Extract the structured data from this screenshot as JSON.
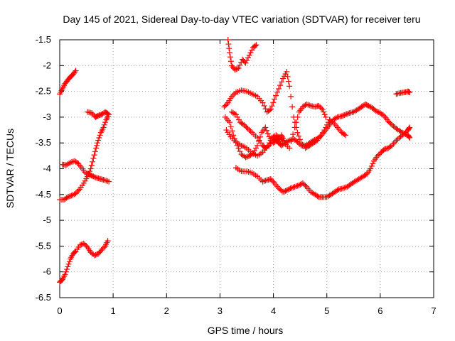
{
  "chart_data": {
    "type": "scatter",
    "title": "Day 145 of 2021, Sidereal Day-to-day VTEC variation (SDTVAR) for receiver teru",
    "xlabel": "GPS time / hours",
    "ylabel": "SDTVAR / TECUs",
    "xlim": [
      0,
      7
    ],
    "ylim": [
      -6.5,
      -1.5
    ],
    "xticks": [
      "0",
      "1",
      "2",
      "3",
      "4",
      "5",
      "6",
      "7"
    ],
    "yticks": [
      "-1.5",
      "-2",
      "-2.5",
      "-3",
      "-3.5",
      "-4",
      "-4.5",
      "-5",
      "-5.5",
      "-6",
      "-6.5"
    ],
    "grid": true,
    "marker": "+",
    "color": "#ff0000",
    "series": [
      {
        "x": [
          0.0,
          0.05,
          0.1,
          0.15,
          0.2,
          0.25,
          0.3
        ],
        "y": [
          -2.55,
          -2.45,
          -2.35,
          -2.28,
          -2.22,
          -2.17,
          -2.1
        ]
      },
      {
        "x": [
          0.52,
          0.6,
          0.67,
          0.72,
          0.78,
          0.85,
          0.9
        ],
        "y": [
          -2.9,
          -2.92,
          -3.0,
          -2.97,
          -2.95,
          -2.9,
          -2.93
        ]
      },
      {
        "x": [
          0.05,
          0.12,
          0.2,
          0.28,
          0.35,
          0.42,
          0.5,
          0.57,
          0.63,
          0.7,
          0.77,
          0.84,
          0.92
        ],
        "y": [
          -3.92,
          -3.93,
          -3.88,
          -3.85,
          -3.9,
          -4.0,
          -4.1,
          -4.12,
          -4.15,
          -4.18,
          -4.2,
          -4.22,
          -4.25
        ]
      },
      {
        "x": [
          0.0,
          0.08,
          0.15,
          0.22,
          0.3,
          0.37,
          0.45,
          0.52,
          0.58,
          0.63,
          0.68,
          0.72,
          0.77,
          0.82,
          0.87,
          0.92
        ],
        "y": [
          -4.6,
          -4.6,
          -4.55,
          -4.52,
          -4.48,
          -4.4,
          -4.28,
          -4.15,
          -4.0,
          -3.8,
          -3.6,
          -3.45,
          -3.3,
          -3.2,
          -3.05,
          -2.95
        ]
      },
      {
        "x": [
          0.0,
          0.05,
          0.1,
          0.15,
          0.2,
          0.25,
          0.3,
          0.38,
          0.45,
          0.52,
          0.58,
          0.65,
          0.72,
          0.78,
          0.85,
          0.9
        ],
        "y": [
          -6.2,
          -6.15,
          -6.05,
          -5.9,
          -5.75,
          -5.65,
          -5.6,
          -5.48,
          -5.45,
          -5.52,
          -5.62,
          -5.68,
          -5.65,
          -5.58,
          -5.5,
          -5.4
        ]
      },
      {
        "x": [
          3.15,
          3.18,
          3.22,
          3.28,
          3.35,
          3.42,
          3.48,
          3.55,
          3.62,
          3.68
        ],
        "y": [
          -1.5,
          -1.75,
          -2.0,
          -2.08,
          -2.05,
          -1.88,
          -1.95,
          -1.8,
          -1.65,
          -1.6
        ]
      },
      {
        "x": [
          3.08,
          3.15,
          3.22,
          3.3,
          3.4,
          3.5,
          3.6,
          3.7,
          3.8,
          3.88,
          3.95,
          4.02,
          4.1,
          4.18,
          4.25,
          4.3,
          4.38,
          4.45,
          4.52,
          4.6,
          4.68,
          4.75,
          4.82,
          4.9,
          4.98,
          5.05,
          5.12,
          5.2,
          5.28,
          5.35
        ],
        "y": [
          -2.8,
          -2.72,
          -2.6,
          -2.52,
          -2.48,
          -2.5,
          -2.55,
          -2.6,
          -2.72,
          -2.9,
          -2.85,
          -2.65,
          -2.45,
          -2.25,
          -2.12,
          -2.4,
          -3.0,
          -3.3,
          -3.5,
          -3.6,
          -3.55,
          -3.5,
          -3.45,
          -3.35,
          -3.2,
          -3.05,
          -3.1,
          -3.2,
          -3.3,
          -3.35
        ]
      },
      {
        "x": [
          3.12,
          3.2,
          3.3,
          3.4,
          3.5,
          3.6,
          3.7,
          3.8,
          3.9,
          3.97,
          4.05,
          4.12,
          4.2,
          4.3,
          4.4,
          4.48,
          4.55,
          4.62,
          4.7,
          4.78,
          4.85,
          4.92,
          4.98
        ],
        "y": [
          -3.25,
          -3.38,
          -3.48,
          -3.55,
          -3.6,
          -3.7,
          -3.75,
          -3.68,
          -3.55,
          -3.4,
          -3.35,
          -3.4,
          -3.5,
          -3.6,
          -3.2,
          -2.9,
          -2.8,
          -2.75,
          -2.78,
          -2.8,
          -2.78,
          -2.85,
          -3.0
        ]
      },
      {
        "x": [
          3.1,
          3.18,
          3.25,
          3.32,
          3.4,
          3.48,
          3.55,
          3.62,
          3.7,
          3.78,
          3.85,
          3.92,
          4.0,
          4.08,
          4.15,
          4.2
        ],
        "y": [
          -3.0,
          -3.1,
          -3.35,
          -3.55,
          -3.72,
          -3.78,
          -3.75,
          -3.7,
          -3.55,
          -3.3,
          -3.2,
          -3.38,
          -3.5,
          -3.45,
          -3.35,
          -3.45
        ]
      },
      {
        "x": [
          3.22,
          3.3,
          3.38,
          3.45,
          3.52,
          3.6,
          3.7,
          3.8,
          3.85,
          3.92,
          4.0,
          4.05,
          4.1,
          4.15,
          4.22,
          4.3,
          4.38,
          4.45,
          4.52,
          4.6,
          4.68,
          4.75,
          4.82,
          4.9,
          4.98,
          5.05,
          5.12,
          5.2,
          5.28,
          5.35,
          5.42,
          5.5,
          5.58,
          5.65,
          5.72,
          5.78,
          5.85,
          5.92,
          6.0,
          6.08,
          6.15,
          6.22,
          6.3,
          6.38,
          6.45,
          6.52,
          6.55
        ],
        "y": [
          -2.9,
          -2.95,
          -3.1,
          -3.15,
          -3.22,
          -3.3,
          -3.4,
          -3.55,
          -3.6,
          -3.55,
          -3.45,
          -3.42,
          -3.5,
          -3.55,
          -3.5,
          -3.45,
          -3.42,
          -3.48,
          -3.55,
          -3.55,
          -3.5,
          -3.45,
          -3.42,
          -3.35,
          -3.25,
          -3.15,
          -3.05,
          -3.0,
          -2.98,
          -2.95,
          -2.92,
          -2.9,
          -2.85,
          -2.8,
          -2.75,
          -2.78,
          -2.82,
          -2.88,
          -2.92,
          -2.98,
          -3.08,
          -3.15,
          -3.22,
          -3.28,
          -3.32,
          -3.35,
          -3.4
        ]
      },
      {
        "x": [
          3.3,
          3.4,
          3.5,
          3.6,
          3.7,
          3.8,
          3.88,
          3.95,
          4.02,
          4.1,
          4.18,
          4.25,
          4.32,
          4.4,
          4.48,
          4.55,
          4.62,
          4.7,
          4.78,
          4.85,
          4.92,
          5.0,
          5.08,
          5.15,
          5.22,
          5.3,
          5.38,
          5.45,
          5.52,
          5.6,
          5.68,
          5.75,
          5.82,
          5.88,
          5.95,
          6.02,
          6.08,
          6.15,
          6.22,
          6.3,
          6.38,
          6.45,
          6.52,
          6.55
        ],
        "y": [
          -3.98,
          -4.05,
          -4.05,
          -4.08,
          -4.15,
          -4.25,
          -4.22,
          -4.2,
          -4.28,
          -4.38,
          -4.45,
          -4.42,
          -4.38,
          -4.35,
          -4.32,
          -4.28,
          -4.35,
          -4.45,
          -4.5,
          -4.55,
          -4.55,
          -4.55,
          -4.5,
          -4.45,
          -4.4,
          -4.38,
          -4.35,
          -4.3,
          -4.25,
          -4.2,
          -4.15,
          -4.1,
          -4.0,
          -3.85,
          -3.75,
          -3.68,
          -3.62,
          -3.6,
          -3.55,
          -3.45,
          -3.38,
          -3.32,
          -3.25,
          -3.2
        ]
      },
      {
        "x": [
          6.3,
          6.38,
          6.45,
          6.52,
          6.55
        ],
        "y": [
          -2.55,
          -2.53,
          -2.52,
          -2.5,
          -2.52
        ]
      }
    ]
  }
}
